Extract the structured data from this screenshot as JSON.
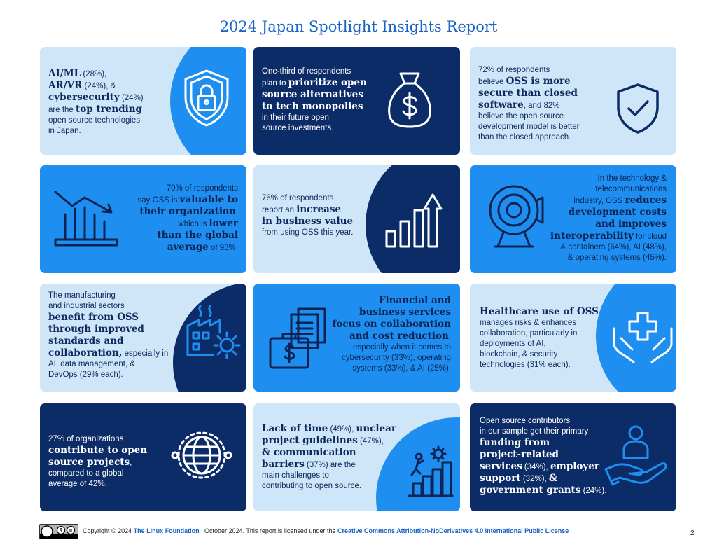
{
  "page": {
    "title": "2024 Japan Spotlight Insights Report",
    "page_number": "2"
  },
  "tiles": {
    "t1": {
      "icon": "shield-lock-icon",
      "l1b": "AI/ML",
      "l1s": " (28%),",
      "l2b": "AR/VR",
      "l2s": " (24%), &",
      "l3b": "cybersecurity",
      "l3s": " (24%)",
      "l4s": "are the ",
      "l4b": "top trending",
      "l5": "open source technologies",
      "l6": "in Japan."
    },
    "t2": {
      "icon": "money-bag-icon",
      "l1": "One-third of respondents",
      "l2s": "plan to ",
      "l2b": "prioritize open",
      "l3b": "source alternatives",
      "l4b": "to tech monopolies",
      "l5": "in their future open",
      "l6": "source investments."
    },
    "t3": {
      "icon": "shield-check-icon",
      "l1": "72% of respondents",
      "l2s": "believe ",
      "l2b": "OSS is more",
      "l3b": "secure than closed",
      "l4b": "software",
      "l4s": ", and 82%",
      "l5": "believe the open source",
      "l6": "development model is better",
      "l7": "than the closed approach."
    },
    "t4": {
      "icon": "declining-chart-icon",
      "l1": "70% of respondents",
      "l2s": "say OSS is ",
      "l2b": "valuable to",
      "l3b": "their organization",
      "l3s": ",",
      "l4s": "which is ",
      "l4b": "lower",
      "l5b": "than the global",
      "l6b": "average",
      "l6s": " of 93%."
    },
    "t5": {
      "icon": "rising-bar-chart-icon",
      "l1": "76% of respondents",
      "l2s": "report an ",
      "l2b": "increase",
      "l3b": "in business value",
      "l4": "from using OSS this year."
    },
    "t6": {
      "icon": "webcam-icon",
      "l1": "In the technology &",
      "l2": "telecommunications",
      "l3s": "industry, OSS ",
      "l3b": "reduces",
      "l4b": "development costs",
      "l5b": "and improves",
      "l6b": "interoperability",
      "l6s": " for cloud",
      "l7": "& containers (64%), AI (48%),",
      "l8": "& operating systems (45%)."
    },
    "t7": {
      "icon": "factory-gear-icon",
      "l1": "The manufacturing",
      "l2": "and industrial sectors",
      "l3b": "benefit from OSS",
      "l4b": "through improved",
      "l5b": "standards and",
      "l6b": "collaboration,",
      "l6s": " especially in",
      "l7": "AI, data management, &",
      "l8": "DevOps (29% each)."
    },
    "t8": {
      "icon": "briefcase-documents-icon",
      "l1b": "Financial and",
      "l2b": "business services",
      "l3b": "focus on collaboration",
      "l4b": "and cost reduction",
      "l4s": ",",
      "l5": "especially when it comes to",
      "l6": "cybersecurity (33%), operating",
      "l7": "systems (33%), & AI (25%)."
    },
    "t9": {
      "icon": "hands-medical-cross-icon",
      "l1b": "Healthcare use of OSS",
      "l2": "manages risks & enhances",
      "l3": "collaboration, particularly in",
      "l4": "deployments of AI,",
      "l5": "blockchain, & security",
      "l6": "technologies (31% each)."
    },
    "t10": {
      "icon": "globe-network-icon",
      "l1": "27% of organizations",
      "l2b": "contribute to open",
      "l3b": "source projects",
      "l3s": ",",
      "l4": "compared to a global",
      "l5": "average of 42%."
    },
    "t11": {
      "icon": "climbing-stairs-gear-icon",
      "l1b": "Lack of time",
      "l1s": " (49%), ",
      "l1b2": "unclear",
      "l2b": "project guidelines",
      "l2s": " (47%),",
      "l3b": "& communication",
      "l4b": "barriers",
      "l4s": " (37%) are the",
      "l5": "main challenges to",
      "l6": "contributing to open source."
    },
    "t12": {
      "icon": "person-hand-icon",
      "l1": "Open source contributors",
      "l2": "in our sample get their primary",
      "l3b": "funding from",
      "l4b": "project-related",
      "l5b": "services",
      "l5s": " (34%), ",
      "l5b2": "employer",
      "l6b": "support",
      "l6s": " (32%), ",
      "l6b2": "&",
      "l7b": "government grants",
      "l7s": " (24%)."
    }
  },
  "footer": {
    "license_icon": "cc-by-nd-icon",
    "t1": "Copyright © 2024 ",
    "link1": "The Linux Foundation",
    "t2": " | October 2024. This report is licensed under the ",
    "link2": "Creative Commons Attribution-NoDerivatives 4.0 International Public License"
  },
  "colors": {
    "navy": "#0c2c68",
    "blue": "#1e8ff0",
    "light": "#cfe5f8",
    "title_blue": "#1763c6"
  }
}
